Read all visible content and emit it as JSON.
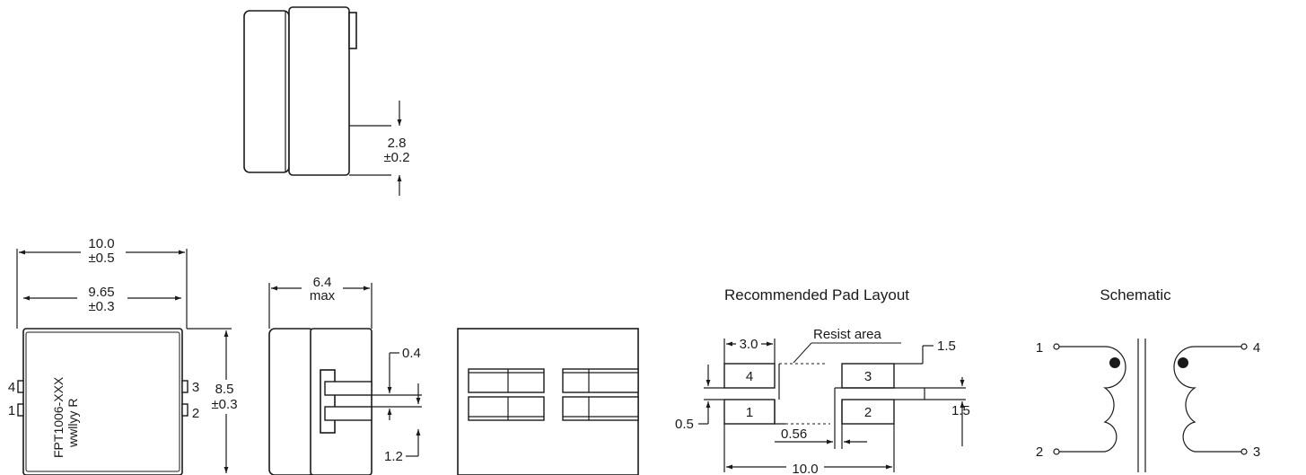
{
  "dims": {
    "side_height_val": "2.8",
    "side_height_tol": "±0.2",
    "length_val": "10.0",
    "length_tol": "±0.5",
    "width_val": "9.65",
    "width_tol": "±0.3",
    "height_val": "8.5",
    "height_tol": "±0.3",
    "max_val": "6.4",
    "max_tol": "max",
    "lead_thickness": "0.4",
    "lead_length": "1.2"
  },
  "part": {
    "marking_line1": "FPT1006-XXX",
    "marking_line2": "wwllyy R",
    "pin4": "4",
    "pin1": "1",
    "pin3": "3",
    "pin2": "2"
  },
  "pad_layout": {
    "title": "Recommended Pad Layout",
    "pad_width": "3.0",
    "resist_label": "Resist area",
    "gap_top": "1.5",
    "gap_right": "1.5",
    "gap_left": "0.5",
    "gap_inner": "0.56",
    "overall": "10.0",
    "pad4": "4",
    "pad3": "3",
    "pad1": "1",
    "pad2": "2"
  },
  "schematic": {
    "title": "Schematic",
    "pin1": "1",
    "pin2": "2",
    "pin3": "3",
    "pin4": "4"
  }
}
